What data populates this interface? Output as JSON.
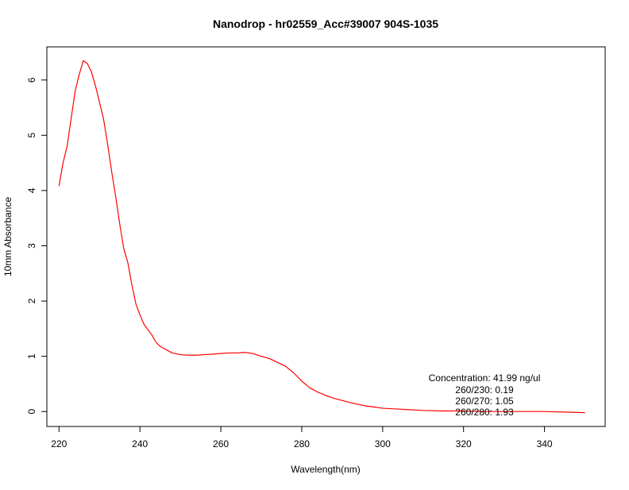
{
  "chart_data": {
    "type": "line",
    "title": "Nanodrop - hr02559_Acc#39007 904S-1035",
    "xlabel": "Wavelength(nm)",
    "ylabel": "10mm Absorbance",
    "xlim": [
      217,
      355
    ],
    "ylim": [
      -0.27,
      6.6
    ],
    "x_ticks": [
      220,
      240,
      260,
      280,
      300,
      320,
      340
    ],
    "y_ticks": [
      0,
      1,
      2,
      3,
      4,
      5,
      6
    ],
    "grid": false,
    "legend": "none",
    "line_color": "#ff0000",
    "series": [
      {
        "x": [
          220,
          221,
          222,
          223,
          224,
          225,
          226,
          227,
          228,
          229,
          230,
          231,
          232,
          233,
          234,
          235,
          236,
          237,
          238,
          239,
          240,
          241,
          242,
          243,
          244,
          245,
          246,
          247,
          248,
          250,
          252,
          254,
          256,
          258,
          260,
          262,
          264,
          266,
          268,
          270,
          272,
          274,
          276,
          278,
          280,
          282,
          284,
          286,
          288,
          290,
          292,
          294,
          296,
          298,
          300,
          305,
          310,
          315,
          320,
          325,
          330,
          335,
          340,
          345,
          350
        ],
        "y": [
          4.08,
          4.5,
          4.8,
          5.3,
          5.8,
          6.1,
          6.35,
          6.3,
          6.15,
          5.9,
          5.6,
          5.3,
          4.85,
          4.35,
          3.9,
          3.4,
          2.95,
          2.7,
          2.3,
          1.95,
          1.75,
          1.58,
          1.48,
          1.38,
          1.25,
          1.18,
          1.14,
          1.1,
          1.06,
          1.03,
          1.02,
          1.02,
          1.03,
          1.04,
          1.05,
          1.06,
          1.06,
          1.07,
          1.05,
          1.0,
          0.96,
          0.89,
          0.82,
          0.7,
          0.55,
          0.43,
          0.35,
          0.29,
          0.24,
          0.2,
          0.16,
          0.13,
          0.1,
          0.08,
          0.06,
          0.04,
          0.02,
          0.01,
          0.01,
          0.0,
          0.0,
          0.0,
          0.0,
          -0.01,
          -0.02
        ]
      }
    ],
    "annotations": [
      "Concentration: 41.99 ng/ul",
      "260/230: 0.19",
      "260/270: 1.05",
      "260/280: 1.93"
    ]
  }
}
